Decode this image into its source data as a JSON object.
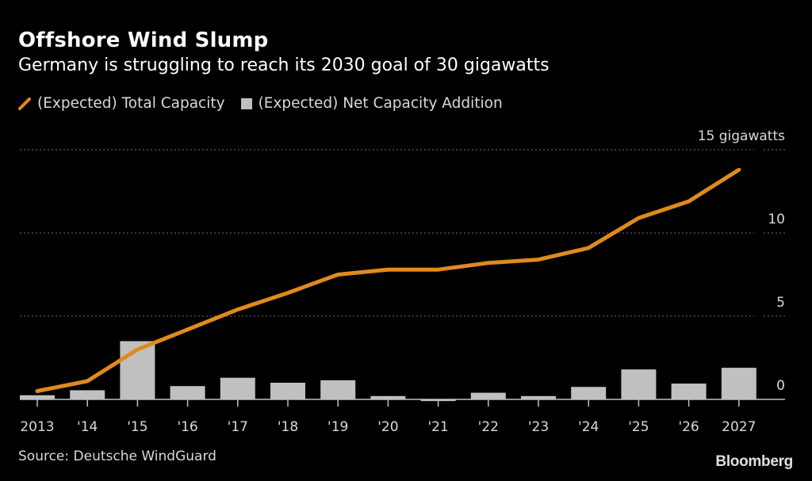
{
  "header": {
    "title": "Offshore Wind Slump",
    "subtitle": "Germany is struggling to reach its 2030 goal of 30 gigawatts"
  },
  "legend": {
    "items": [
      {
        "icon": "line-swatch-icon",
        "label": "(Expected) Total Capacity",
        "color": "#e08a1e"
      },
      {
        "icon": "bar-swatch-icon",
        "label": "(Expected) Net Capacity Addition",
        "color": "#c0c0c0"
      }
    ]
  },
  "footer": {
    "source": "Source: Deutsche WindGuard",
    "logo": "Bloomberg"
  },
  "chart_data": {
    "type": "bar",
    "title": "Offshore Wind Slump",
    "subtitle": "Germany is struggling to reach its 2030 goal of 30 gigawatts",
    "xlabel": "",
    "ylabel": "gigawatts",
    "categories": [
      "2013",
      "'14",
      "'15",
      "'16",
      "'17",
      "'18",
      "'19",
      "'20",
      "'21",
      "'22",
      "'23",
      "'24",
      "'25",
      "'26",
      "2027"
    ],
    "ylim": [
      0,
      15
    ],
    "yticks": [
      {
        "value": 15,
        "label": "15 gigawatts"
      },
      {
        "value": 10,
        "label": "10"
      },
      {
        "value": 5,
        "label": "5"
      },
      {
        "value": 0,
        "label": "0"
      }
    ],
    "grid": true,
    "y_axis_side": "right",
    "legend_position": "top-left",
    "series": [
      {
        "name": "(Expected) Total Capacity",
        "type": "line",
        "color": "#e08a1e",
        "values": [
          0.5,
          1.1,
          3.0,
          4.2,
          5.4,
          6.4,
          7.5,
          7.8,
          7.8,
          8.2,
          8.4,
          9.1,
          10.9,
          11.9,
          13.8
        ]
      },
      {
        "name": "(Expected) Net Capacity Addition",
        "type": "bar",
        "color": "#c0c0c0",
        "values": [
          0.25,
          0.55,
          3.5,
          0.8,
          1.3,
          1.0,
          1.15,
          0.2,
          -0.1,
          0.4,
          0.2,
          0.75,
          1.8,
          0.95,
          1.9
        ]
      }
    ]
  }
}
